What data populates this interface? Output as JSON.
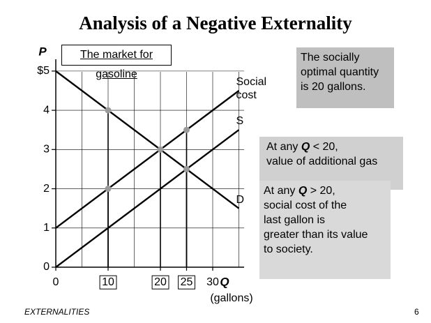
{
  "title": "Analysis of a Negative Externality",
  "footer": "EXTERNALITIES",
  "page_number": "6",
  "chart_data": {
    "type": "line",
    "subtitle": "The market for gasoline",
    "x_label": "Q",
    "x_unit": "(gallons)",
    "y_label": "P",
    "xlim": [
      0,
      36
    ],
    "ylim": [
      0,
      5.3
    ],
    "xticks": [
      0,
      10,
      20,
      25,
      30
    ],
    "boxed_xticks": [
      false,
      true,
      true,
      true,
      false
    ],
    "yticks": [
      0,
      1,
      2,
      3,
      4,
      {
        "value": 5,
        "label": "$5"
      }
    ],
    "grid": true,
    "xgrid": [
      5,
      10,
      15,
      20,
      25,
      30,
      35
    ],
    "series": [
      {
        "name": "Social cost",
        "color": "#000000",
        "x": [
          0,
          35
        ],
        "values": [
          1,
          4.5
        ]
      },
      {
        "name": "S",
        "color": "#000000",
        "x": [
          0,
          35
        ],
        "values": [
          0,
          3.5
        ]
      },
      {
        "name": "D",
        "color": "#000000",
        "x": [
          0,
          35
        ],
        "values": [
          5,
          1.5
        ]
      }
    ],
    "points": {
      "color": "#9a9a9a",
      "x": [
        10,
        10,
        20,
        25,
        25
      ],
      "values": [
        4,
        2,
        3,
        3.5,
        2.5
      ]
    },
    "annotations": [
      {
        "color": "#bfbfbf",
        "lines": [
          "The socially",
          "optimal quantity",
          "is 20 gallons."
        ]
      },
      {
        "color": "#d0d0d0",
        "lines": [
          [
            "At any ",
            "Q",
            " < 20,"
          ],
          "value of additional gas"
        ]
      },
      {
        "color": "#d9d9d9",
        "lines": [
          [
            "At any ",
            "Q",
            " > 20,"
          ],
          "social cost of the",
          "last gallon is",
          "greater than its value",
          "to society."
        ]
      }
    ]
  }
}
